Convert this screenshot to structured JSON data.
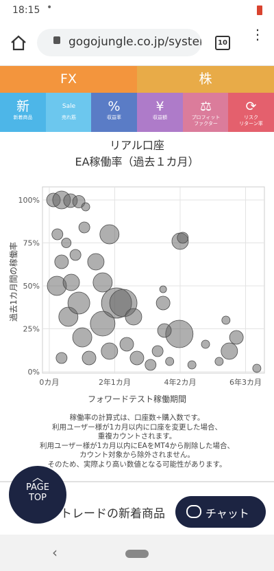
{
  "status": {
    "time": "18:15"
  },
  "browser": {
    "url": "gogojungle.co.jp/system",
    "tabs": "10"
  },
  "market_tabs": [
    "FX",
    "株"
  ],
  "nav": [
    {
      "icon": "新",
      "label": [
        "新着商品"
      ],
      "color": "#4db6e8"
    },
    {
      "icon": "Sale",
      "label": [
        "売れ筋"
      ],
      "color": "#6cc7ee"
    },
    {
      "icon": "%",
      "label": [
        "収益率"
      ],
      "color": "#5a7cc6"
    },
    {
      "icon": "¥",
      "label": [
        "収益額"
      ],
      "color": "#ae7bc9"
    },
    {
      "icon": "⚖",
      "label": [
        "プロフィット",
        "ファクター"
      ],
      "color": "#db7c9b"
    },
    {
      "icon": "⟳",
      "label": [
        "リスク",
        "リターン率"
      ],
      "color": "#e4606d"
    }
  ],
  "chart_data": {
    "type": "bubble",
    "title": [
      "リアル口座",
      "EA稼働率（過去１カ月）"
    ],
    "x_label": "フォワードテスト稼働期間",
    "y_label": "過去1カ月間の稼働率",
    "color": "rgba(95,95,95,0.5)",
    "grid": true,
    "xlim": [
      -2.6,
      82.2
    ],
    "ylim": [
      -0.8,
      107.6
    ],
    "xticks": [
      {
        "value": 0,
        "label": "0カ月"
      },
      {
        "value": 25,
        "label": "2年1カ月"
      },
      {
        "value": 50,
        "label": "4年2カ月"
      },
      {
        "value": 75,
        "label": "6年3カ月"
      }
    ],
    "yticks": [
      {
        "value": 0,
        "label": "0%"
      },
      {
        "value": 25,
        "label": "25%"
      },
      {
        "value": 50,
        "label": "50%"
      },
      {
        "value": 75,
        "label": "75%"
      },
      {
        "value": 100,
        "label": "100%"
      }
    ],
    "x": [
      1.6,
      4.7,
      8.1,
      11.3,
      3.1,
      6.5,
      4.7,
      2.9,
      8.4,
      13.4,
      23,
      17.8,
      25.7,
      28.3,
      20.4,
      32.2,
      43.5,
      43.5,
      50,
      51,
      49.7,
      44,
      41.4,
      59.7,
      67.5,
      71.5,
      68.8,
      79.3,
      12.6,
      7.3,
      15.2,
      23,
      33.5,
      38.7,
      54.5,
      4.7,
      20.4,
      11.3,
      29.6,
      64.9,
      46,
      10,
      13.9
    ],
    "values": [
      100,
      100,
      99.6,
      99,
      80,
      75,
      64,
      50,
      52,
      84,
      80,
      64,
      40,
      40,
      52,
      32,
      48,
      40,
      76,
      78,
      22,
      24,
      12,
      16,
      30,
      20,
      12,
      2,
      20,
      32,
      8,
      12,
      8,
      4,
      4,
      8,
      28,
      40,
      16,
      6,
      6,
      68,
      96
    ],
    "sizes": [
      10,
      13,
      10,
      9,
      8,
      7,
      10,
      14,
      12,
      8,
      14,
      12,
      22,
      20,
      14,
      12,
      5,
      10,
      12,
      8,
      20,
      10,
      8,
      6,
      6,
      10,
      12,
      6,
      14,
      14,
      10,
      12,
      10,
      8,
      6,
      8,
      18,
      16,
      10,
      6,
      6,
      8,
      6
    ]
  },
  "notes": [
    "稼働率の計算式は、口座数÷購入数です。",
    "利用ユーザー様が1カ月以内に口座を変更した場合、",
    "重複カウントされます。",
    "利用ユーザー様が1カ月以内にEAをMT4から削除した場合、",
    "カウント対象から除外されません。",
    "そのため、実際より高い数値となる可能性があります。"
  ],
  "section_title": "トレードの新着商品",
  "page_top": [
    "PAGE",
    "TOP"
  ],
  "chat": "チャット"
}
